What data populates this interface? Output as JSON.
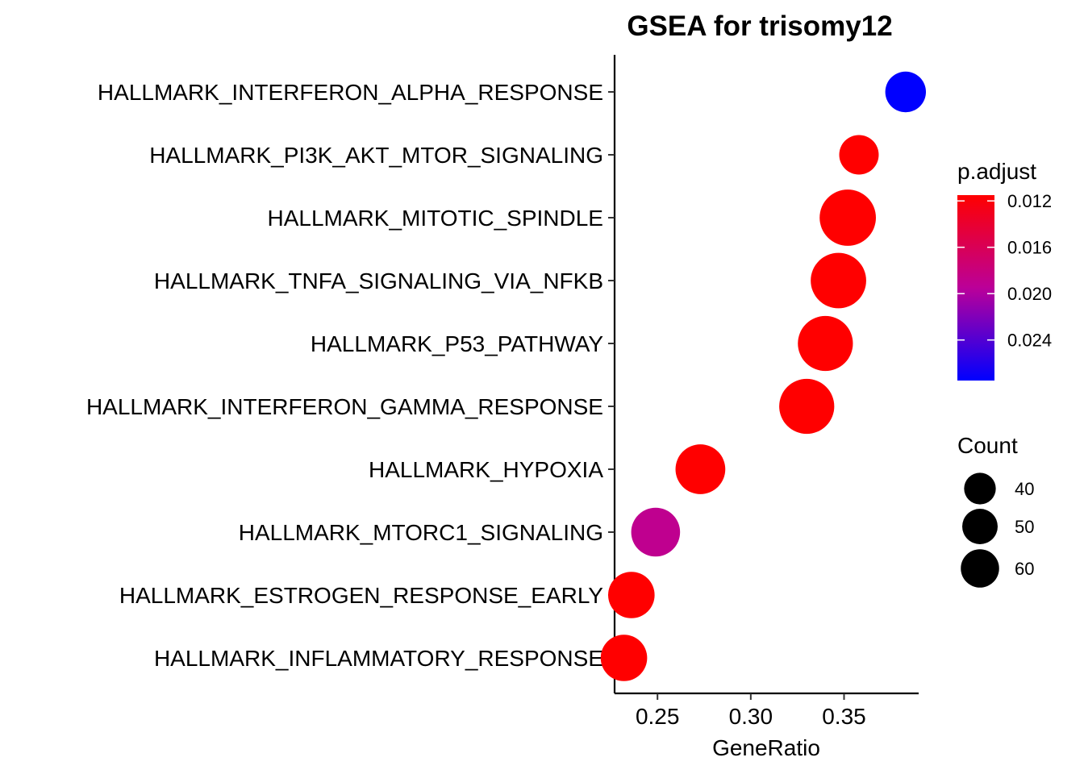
{
  "chart_data": {
    "type": "scatter",
    "title": "GSEA for trisomy12",
    "xlabel": "GeneRatio",
    "ylabel": "",
    "xlim": [
      0.227,
      0.39
    ],
    "xticks": [
      "0.25",
      "0.30",
      "0.35"
    ],
    "xtick_values": [
      0.25,
      0.3,
      0.35
    ],
    "grid": false,
    "legend_placement": "right",
    "categories": [
      "HALLMARK_INTERFERON_ALPHA_RESPONSE",
      "HALLMARK_PI3K_AKT_MTOR_SIGNALING",
      "HALLMARK_MITOTIC_SPINDLE",
      "HALLMARK_TNFA_SIGNALING_VIA_NFKB",
      "HALLMARK_P53_PATHWAY",
      "HALLMARK_INTERFERON_GAMMA_RESPONSE",
      "HALLMARK_HYPOXIA",
      "HALLMARK_MTORC1_SIGNALING",
      "HALLMARK_ESTROGEN_RESPONSE_EARLY",
      "HALLMARK_INFLAMMATORY_RESPONSE"
    ],
    "points": [
      {
        "term": "HALLMARK_INTERFERON_ALPHA_RESPONSE",
        "gene_ratio": 0.383,
        "count": 36,
        "p_adjust": 0.0275
      },
      {
        "term": "HALLMARK_PI3K_AKT_MTOR_SIGNALING",
        "gene_ratio": 0.358,
        "count": 34,
        "p_adjust": 0.0115
      },
      {
        "term": "HALLMARK_MITOTIC_SPINDLE",
        "gene_ratio": 0.352,
        "count": 69,
        "p_adjust": 0.0115
      },
      {
        "term": "HALLMARK_TNFA_SIGNALING_VIA_NFKB",
        "gene_ratio": 0.347,
        "count": 67,
        "p_adjust": 0.0115
      },
      {
        "term": "HALLMARK_P53_PATHWAY",
        "gene_ratio": 0.34,
        "count": 66,
        "p_adjust": 0.0115
      },
      {
        "term": "HALLMARK_INTERFERON_GAMMA_RESPONSE",
        "gene_ratio": 0.33,
        "count": 66,
        "p_adjust": 0.0115
      },
      {
        "term": "HALLMARK_HYPOXIA",
        "gene_ratio": 0.273,
        "count": 54,
        "p_adjust": 0.0115
      },
      {
        "term": "HALLMARK_MTORC1_SIGNALING",
        "gene_ratio": 0.249,
        "count": 52,
        "p_adjust": 0.019
      },
      {
        "term": "HALLMARK_ESTROGEN_RESPONSE_EARLY",
        "gene_ratio": 0.236,
        "count": 47,
        "p_adjust": 0.0115
      },
      {
        "term": "HALLMARK_INFLAMMATORY_RESPONSE",
        "gene_ratio": 0.232,
        "count": 47,
        "p_adjust": 0.0115
      }
    ],
    "color_legend": {
      "title": "p.adjust",
      "ticks": [
        "0.012",
        "0.016",
        "0.020",
        "0.024"
      ],
      "tick_values": [
        0.012,
        0.016,
        0.02,
        0.024
      ],
      "range": [
        0.0115,
        0.0275
      ],
      "low_color": "#ff0000",
      "mid_color": "#bb0099",
      "high_color": "#0000ff"
    },
    "size_legend": {
      "title": "Count",
      "labels": [
        "40",
        "50",
        "60"
      ],
      "values": [
        40,
        50,
        60
      ],
      "color": "#000000"
    }
  }
}
